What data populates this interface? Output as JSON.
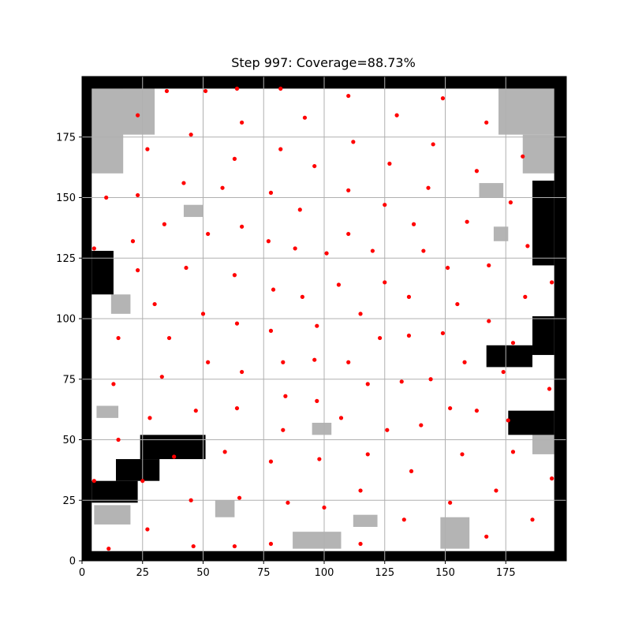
{
  "chart_data": {
    "type": "scatter",
    "title": "Step 997: Coverage=88.73%",
    "xlabel": "",
    "ylabel": "",
    "xlim": [
      0,
      200
    ],
    "ylim": [
      0,
      200
    ],
    "x_ticks": [
      0,
      25,
      50,
      75,
      100,
      125,
      150,
      175
    ],
    "y_ticks": [
      0,
      25,
      50,
      75,
      100,
      125,
      150,
      175
    ],
    "grid": true,
    "colors": {
      "free": "#ffffff",
      "unexplored": "#b4b4b4",
      "obstacle": "#000000",
      "agent": "#ff0000",
      "grid": "#b0b0b0"
    },
    "obstacles": [
      {
        "x0": 0,
        "x1": 200,
        "y0": 195,
        "y1": 200
      },
      {
        "x0": 0,
        "x1": 200,
        "y0": 0,
        "y1": 4
      },
      {
        "x0": 0,
        "x1": 4,
        "y0": 0,
        "y1": 200
      },
      {
        "x0": 195,
        "x1": 200,
        "y0": 0,
        "y1": 200
      },
      {
        "x0": 4,
        "x1": 13,
        "y0": 110,
        "y1": 128
      },
      {
        "x0": 4,
        "x1": 23,
        "y0": 24,
        "y1": 33
      },
      {
        "x0": 14,
        "x1": 32,
        "y0": 33,
        "y1": 42
      },
      {
        "x0": 24,
        "x1": 51,
        "y0": 42,
        "y1": 52
      },
      {
        "x0": 186,
        "x1": 195,
        "y0": 122,
        "y1": 157
      },
      {
        "x0": 186,
        "x1": 195,
        "y0": 85,
        "y1": 101
      },
      {
        "x0": 167,
        "x1": 186,
        "y0": 80,
        "y1": 89
      },
      {
        "x0": 176,
        "x1": 195,
        "y0": 52,
        "y1": 62
      }
    ],
    "unexplored_patches": [
      {
        "x0": 4,
        "x1": 17,
        "y0": 160,
        "y1": 195
      },
      {
        "x0": 4,
        "x1": 30,
        "y0": 176,
        "y1": 195
      },
      {
        "x0": 172,
        "x1": 195,
        "y0": 176,
        "y1": 195
      },
      {
        "x0": 182,
        "x1": 195,
        "y0": 160,
        "y1": 176
      },
      {
        "x0": 148,
        "x1": 160,
        "y0": 5,
        "y1": 18
      },
      {
        "x0": 87,
        "x1": 107,
        "y0": 5,
        "y1": 12
      },
      {
        "x0": 5,
        "x1": 20,
        "y0": 15,
        "y1": 23
      },
      {
        "x0": 186,
        "x1": 195,
        "y0": 44,
        "y1": 52
      },
      {
        "x0": 12,
        "x1": 20,
        "y0": 102,
        "y1": 110
      },
      {
        "x0": 55,
        "x1": 63,
        "y0": 18,
        "y1": 25
      },
      {
        "x0": 95,
        "x1": 103,
        "y0": 52,
        "y1": 57
      },
      {
        "x0": 112,
        "x1": 122,
        "y0": 14,
        "y1": 19
      },
      {
        "x0": 164,
        "x1": 174,
        "y0": 150,
        "y1": 156
      },
      {
        "x0": 170,
        "x1": 176,
        "y0": 132,
        "y1": 138
      },
      {
        "x0": 42,
        "x1": 50,
        "y0": 142,
        "y1": 147
      },
      {
        "x0": 6,
        "x1": 15,
        "y0": 59,
        "y1": 64
      }
    ],
    "points": [
      [
        35,
        194
      ],
      [
        51,
        194
      ],
      [
        64,
        195
      ],
      [
        82,
        195
      ],
      [
        110,
        192
      ],
      [
        149,
        191
      ],
      [
        23,
        184
      ],
      [
        66,
        181
      ],
      [
        92,
        183
      ],
      [
        130,
        184
      ],
      [
        167,
        181
      ],
      [
        45,
        176
      ],
      [
        27,
        170
      ],
      [
        82,
        170
      ],
      [
        112,
        173
      ],
      [
        145,
        172
      ],
      [
        182,
        167
      ],
      [
        63,
        166
      ],
      [
        96,
        163
      ],
      [
        127,
        164
      ],
      [
        163,
        161
      ],
      [
        42,
        156
      ],
      [
        58,
        154
      ],
      [
        78,
        152
      ],
      [
        110,
        153
      ],
      [
        143,
        154
      ],
      [
        10,
        150
      ],
      [
        23,
        151
      ],
      [
        90,
        145
      ],
      [
        125,
        147
      ],
      [
        177,
        148
      ],
      [
        34,
        139
      ],
      [
        66,
        138
      ],
      [
        137,
        139
      ],
      [
        159,
        140
      ],
      [
        21,
        132
      ],
      [
        52,
        135
      ],
      [
        77,
        132
      ],
      [
        110,
        135
      ],
      [
        5,
        129
      ],
      [
        88,
        129
      ],
      [
        101,
        127
      ],
      [
        120,
        128
      ],
      [
        141,
        128
      ],
      [
        184,
        130
      ],
      [
        23,
        120
      ],
      [
        43,
        121
      ],
      [
        63,
        118
      ],
      [
        151,
        121
      ],
      [
        168,
        122
      ],
      [
        79,
        112
      ],
      [
        106,
        114
      ],
      [
        125,
        115
      ],
      [
        194,
        115
      ],
      [
        30,
        106
      ],
      [
        91,
        109
      ],
      [
        135,
        109
      ],
      [
        155,
        106
      ],
      [
        183,
        109
      ],
      [
        50,
        102
      ],
      [
        115,
        102
      ],
      [
        64,
        98
      ],
      [
        97,
        97
      ],
      [
        168,
        99
      ],
      [
        15,
        92
      ],
      [
        36,
        92
      ],
      [
        78,
        95
      ],
      [
        123,
        92
      ],
      [
        135,
        93
      ],
      [
        149,
        94
      ],
      [
        178,
        90
      ],
      [
        52,
        82
      ],
      [
        66,
        78
      ],
      [
        83,
        82
      ],
      [
        96,
        83
      ],
      [
        110,
        82
      ],
      [
        158,
        82
      ],
      [
        174,
        78
      ],
      [
        33,
        76
      ],
      [
        13,
        73
      ],
      [
        118,
        73
      ],
      [
        132,
        74
      ],
      [
        144,
        75
      ],
      [
        193,
        71
      ],
      [
        84,
        68
      ],
      [
        97,
        66
      ],
      [
        28,
        59
      ],
      [
        47,
        62
      ],
      [
        64,
        63
      ],
      [
        107,
        59
      ],
      [
        152,
        63
      ],
      [
        163,
        62
      ],
      [
        15,
        50
      ],
      [
        83,
        54
      ],
      [
        126,
        54
      ],
      [
        140,
        56
      ],
      [
        176,
        58
      ],
      [
        38,
        43
      ],
      [
        59,
        45
      ],
      [
        78,
        41
      ],
      [
        98,
        42
      ],
      [
        118,
        44
      ],
      [
        157,
        44
      ],
      [
        178,
        45
      ],
      [
        5,
        33
      ],
      [
        25,
        33
      ],
      [
        136,
        37
      ],
      [
        194,
        34
      ],
      [
        115,
        29
      ],
      [
        171,
        29
      ],
      [
        45,
        25
      ],
      [
        65,
        26
      ],
      [
        85,
        24
      ],
      [
        152,
        24
      ],
      [
        100,
        22
      ],
      [
        133,
        17
      ],
      [
        186,
        17
      ],
      [
        27,
        13
      ],
      [
        167,
        10
      ],
      [
        11,
        5
      ],
      [
        46,
        6
      ],
      [
        63,
        6
      ],
      [
        78,
        7
      ],
      [
        115,
        7
      ]
    ]
  }
}
